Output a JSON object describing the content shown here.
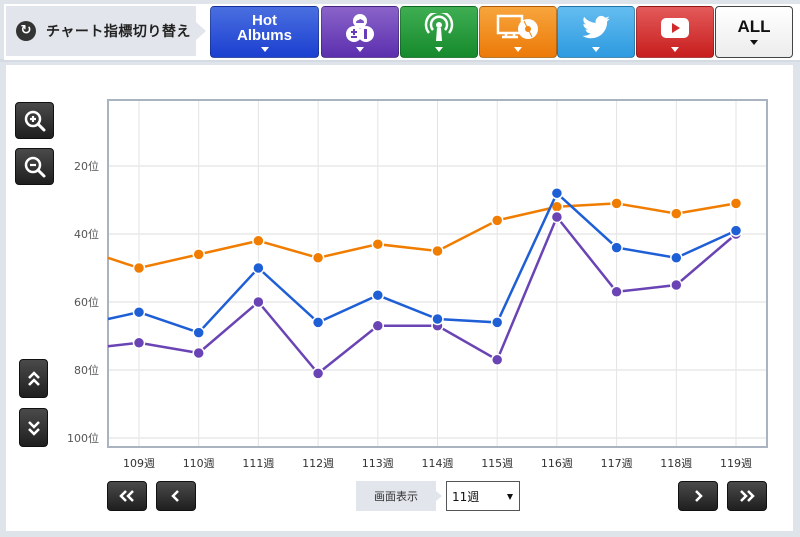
{
  "header": {
    "switch_label": "チャート指標切り替え",
    "switch_icon": "refresh-icon",
    "metric_buttons": [
      {
        "id": "hot-albums",
        "label": "Hot Albums",
        "label_line1": "Hot",
        "label_line2": "Albums",
        "color": "#2448d4",
        "icon": "none"
      },
      {
        "id": "sales-download",
        "label": "",
        "color": "#6a3db8",
        "icon": "download-cloud-cd-icon"
      },
      {
        "id": "radio",
        "label": "",
        "color": "#1f9638",
        "icon": "broadcast-antenna-icon"
      },
      {
        "id": "lookup",
        "label": "",
        "color": "#f08712",
        "icon": "pc-cd-icon"
      },
      {
        "id": "twitter",
        "label": "",
        "color": "#3aa5e6",
        "icon": "twitter-bird-icon"
      },
      {
        "id": "youtube",
        "label": "",
        "color": "#d12a2a",
        "icon": "youtube-play-icon"
      },
      {
        "id": "all",
        "label": "ALL",
        "color": "#ffffff",
        "icon": "none"
      }
    ]
  },
  "controls": {
    "zoom_in": "zoom-in-icon",
    "zoom_out": "zoom-out-icon",
    "scroll_up": "double-chevron-up-icon",
    "scroll_down": "double-chevron-down-icon",
    "nav_first": "double-chevron-left-icon",
    "nav_prev": "chevron-left-icon",
    "nav_next": "chevron-right-icon",
    "nav_last": "double-chevron-right-icon",
    "display_label": "画面表示",
    "week_select_value": "11週"
  },
  "chart_data": {
    "type": "line",
    "title": "",
    "xlabel": "",
    "ylabel": "",
    "y_inverted": true,
    "ylim": [
      100,
      0
    ],
    "y_ticks": [
      "20位",
      "40位",
      "60位",
      "80位",
      "100位"
    ],
    "y_tick_values": [
      20,
      40,
      60,
      80,
      100
    ],
    "categories": [
      "109週",
      "110週",
      "111週",
      "112週",
      "113週",
      "114週",
      "115週",
      "116週",
      "117週",
      "118週",
      "119週"
    ],
    "grid": true,
    "legend": "none",
    "left_edge_values": {
      "orange": 47,
      "blue": 65,
      "purple": 73
    },
    "series": [
      {
        "name": "orange",
        "color": "#f07d00",
        "values": [
          50,
          46,
          42,
          47,
          43,
          45,
          36,
          32,
          31,
          34,
          31
        ]
      },
      {
        "name": "blue",
        "color": "#1f5fd6",
        "values": [
          63,
          69,
          50,
          66,
          58,
          65,
          66,
          28,
          44,
          47,
          39
        ]
      },
      {
        "name": "purple",
        "color": "#6a44b4",
        "values": [
          72,
          75,
          60,
          81,
          67,
          67,
          77,
          35,
          57,
          55,
          40
        ]
      }
    ]
  }
}
